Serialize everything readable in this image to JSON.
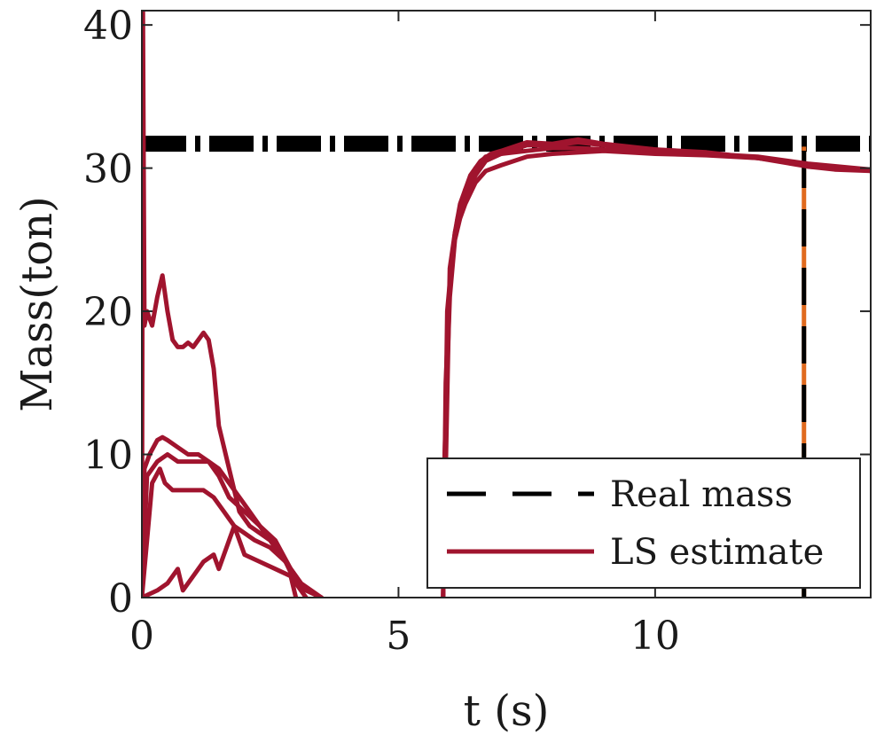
{
  "chart_data": {
    "type": "line",
    "xlabel": "t (s)",
    "ylabel": "Mass(ton)",
    "xlim": [
      0,
      14.2
    ],
    "ylim": [
      0,
      41
    ],
    "x_ticks": [
      0,
      5,
      10
    ],
    "y_ticks": [
      0,
      10,
      20,
      30,
      40
    ],
    "x_tick_labels": [
      "0",
      "5",
      "10"
    ],
    "y_tick_labels": [
      "0",
      "10",
      "20",
      "30",
      "40"
    ],
    "grid": false,
    "legend_position": "bottom-right",
    "legend": [
      {
        "label": "Real mass",
        "style": "dashed",
        "color": "#000000"
      },
      {
        "label": "LS estimate",
        "style": "solid",
        "color": "#a0142e"
      }
    ],
    "reference_lines": [
      {
        "orientation": "horizontal",
        "y": 31.7,
        "style": "dash-dot",
        "color": "#000000"
      },
      {
        "orientation": "vertical",
        "x": 12.9,
        "from_y": 0,
        "to_y": 31.5,
        "style": "dashed",
        "colors": [
          "#000000",
          "#e06a1e"
        ]
      }
    ],
    "series": [
      {
        "color": "#a0142e",
        "x": [
          0,
          0.02,
          0.05,
          0.1,
          0.2,
          0.3,
          0.4,
          0.5,
          0.6,
          0.7,
          0.8,
          0.9,
          1.0,
          1.1,
          1.2,
          1.3,
          1.4,
          1.5,
          1.7,
          1.9,
          2.1,
          2.3,
          2.5,
          2.7,
          2.9,
          3.1,
          3.3,
          3.5
        ],
        "y": [
          0,
          41,
          19,
          20,
          19,
          21,
          22.5,
          20,
          18,
          17.5,
          17.5,
          17.8,
          17.5,
          18,
          18.5,
          18,
          16,
          12,
          9,
          6,
          5,
          4.5,
          4,
          3,
          2,
          1,
          0.5,
          0
        ]
      },
      {
        "color": "#a0142e",
        "x": [
          0,
          0.05,
          0.15,
          0.3,
          0.4,
          0.5,
          0.7,
          0.9,
          1.1,
          1.3,
          1.5,
          1.7,
          2.0,
          2.3,
          2.6,
          2.9,
          3.2,
          3.5
        ],
        "y": [
          0,
          9,
          10,
          11,
          11.2,
          11,
          10.5,
          10,
          10,
          9.5,
          9,
          8,
          6.5,
          5,
          3.5,
          2,
          0.5,
          0
        ]
      },
      {
        "color": "#a0142e",
        "x": [
          0,
          0.1,
          0.2,
          0.3,
          0.5,
          0.7,
          0.9,
          1.1,
          1.3,
          1.5,
          1.7,
          2.0,
          2.3,
          2.6,
          2.9,
          3.2,
          3.5
        ],
        "y": [
          0,
          8.5,
          9,
          9.5,
          10,
          9.5,
          9.5,
          9.5,
          9.5,
          8.5,
          7,
          6,
          5,
          4,
          2,
          0.5,
          0
        ]
      },
      {
        "color": "#a0142e",
        "x": [
          0,
          0.2,
          0.35,
          0.45,
          0.6,
          0.8,
          1.0,
          1.2,
          1.4,
          1.6,
          1.8,
          2.0,
          2.2,
          2.5,
          2.8,
          3.0,
          3.2
        ],
        "y": [
          0,
          8,
          9,
          8,
          7.5,
          7.5,
          7.5,
          7.5,
          7,
          6,
          5,
          4.5,
          4,
          3.5,
          2.5,
          1,
          0
        ]
      },
      {
        "color": "#a0142e",
        "x": [
          0,
          0.3,
          0.5,
          0.7,
          0.8,
          1.0,
          1.2,
          1.4,
          1.5,
          1.7,
          1.8,
          2.0,
          2.3,
          2.6,
          2.9,
          3.0
        ],
        "y": [
          0,
          0.5,
          1,
          2,
          0.5,
          1.5,
          2.5,
          3,
          2,
          4,
          5,
          3,
          2.5,
          2,
          1.5,
          0
        ]
      },
      {
        "color": "#a0142e",
        "x": [
          5.87,
          5.9,
          5.95,
          6.0,
          6.1,
          6.2,
          6.3,
          6.5,
          6.7,
          7.0,
          7.5,
          8.0,
          9.0,
          10.0,
          11.0,
          12.0,
          12.5,
          13.0,
          13.5,
          14.2
        ],
        "y": [
          0,
          10,
          16,
          21,
          25,
          26.5,
          27.5,
          29,
          29.8,
          30.2,
          30.8,
          31.0,
          31.2,
          31.0,
          30.9,
          30.7,
          30.5,
          30.1,
          29.9,
          29.8
        ]
      },
      {
        "color": "#a0142e",
        "x": [
          5.87,
          5.92,
          6.0,
          6.1,
          6.2,
          6.3,
          6.5,
          6.7,
          7.0,
          7.5,
          8.0,
          8.5,
          9.0,
          10.0,
          11.0,
          12.0,
          13.0,
          14.2
        ],
        "y": [
          0,
          15,
          22,
          25.5,
          27,
          28,
          29.5,
          30.5,
          31,
          31.2,
          31.4,
          31.4,
          31.3,
          31.1,
          31.0,
          30.7,
          30.2,
          29.8
        ]
      },
      {
        "color": "#a0142e",
        "x": [
          5.87,
          5.95,
          6.05,
          6.15,
          6.3,
          6.5,
          6.7,
          7.0,
          7.5,
          8.0,
          8.5,
          9.0,
          10.0,
          11.0,
          12.0,
          13.0,
          14.2
        ],
        "y": [
          0,
          20,
          24,
          26.5,
          28.5,
          30,
          30.8,
          31,
          31.6,
          31.6,
          31.8,
          31.6,
          31.3,
          31.1,
          30.7,
          30.1,
          29.9
        ]
      },
      {
        "color": "#a0142e",
        "x": [
          5.87,
          6.0,
          6.1,
          6.2,
          6.4,
          6.6,
          6.8,
          7.0,
          7.5,
          8.0,
          8.5,
          9.0,
          10.0,
          11.0,
          12.0,
          13.0,
          14.2
        ],
        "y": [
          0,
          23,
          25.5,
          27.5,
          29.5,
          30.5,
          31.0,
          31.2,
          31.8,
          31.7,
          32.0,
          31.7,
          31.3,
          31.0,
          30.8,
          30.3,
          29.9
        ]
      }
    ]
  }
}
